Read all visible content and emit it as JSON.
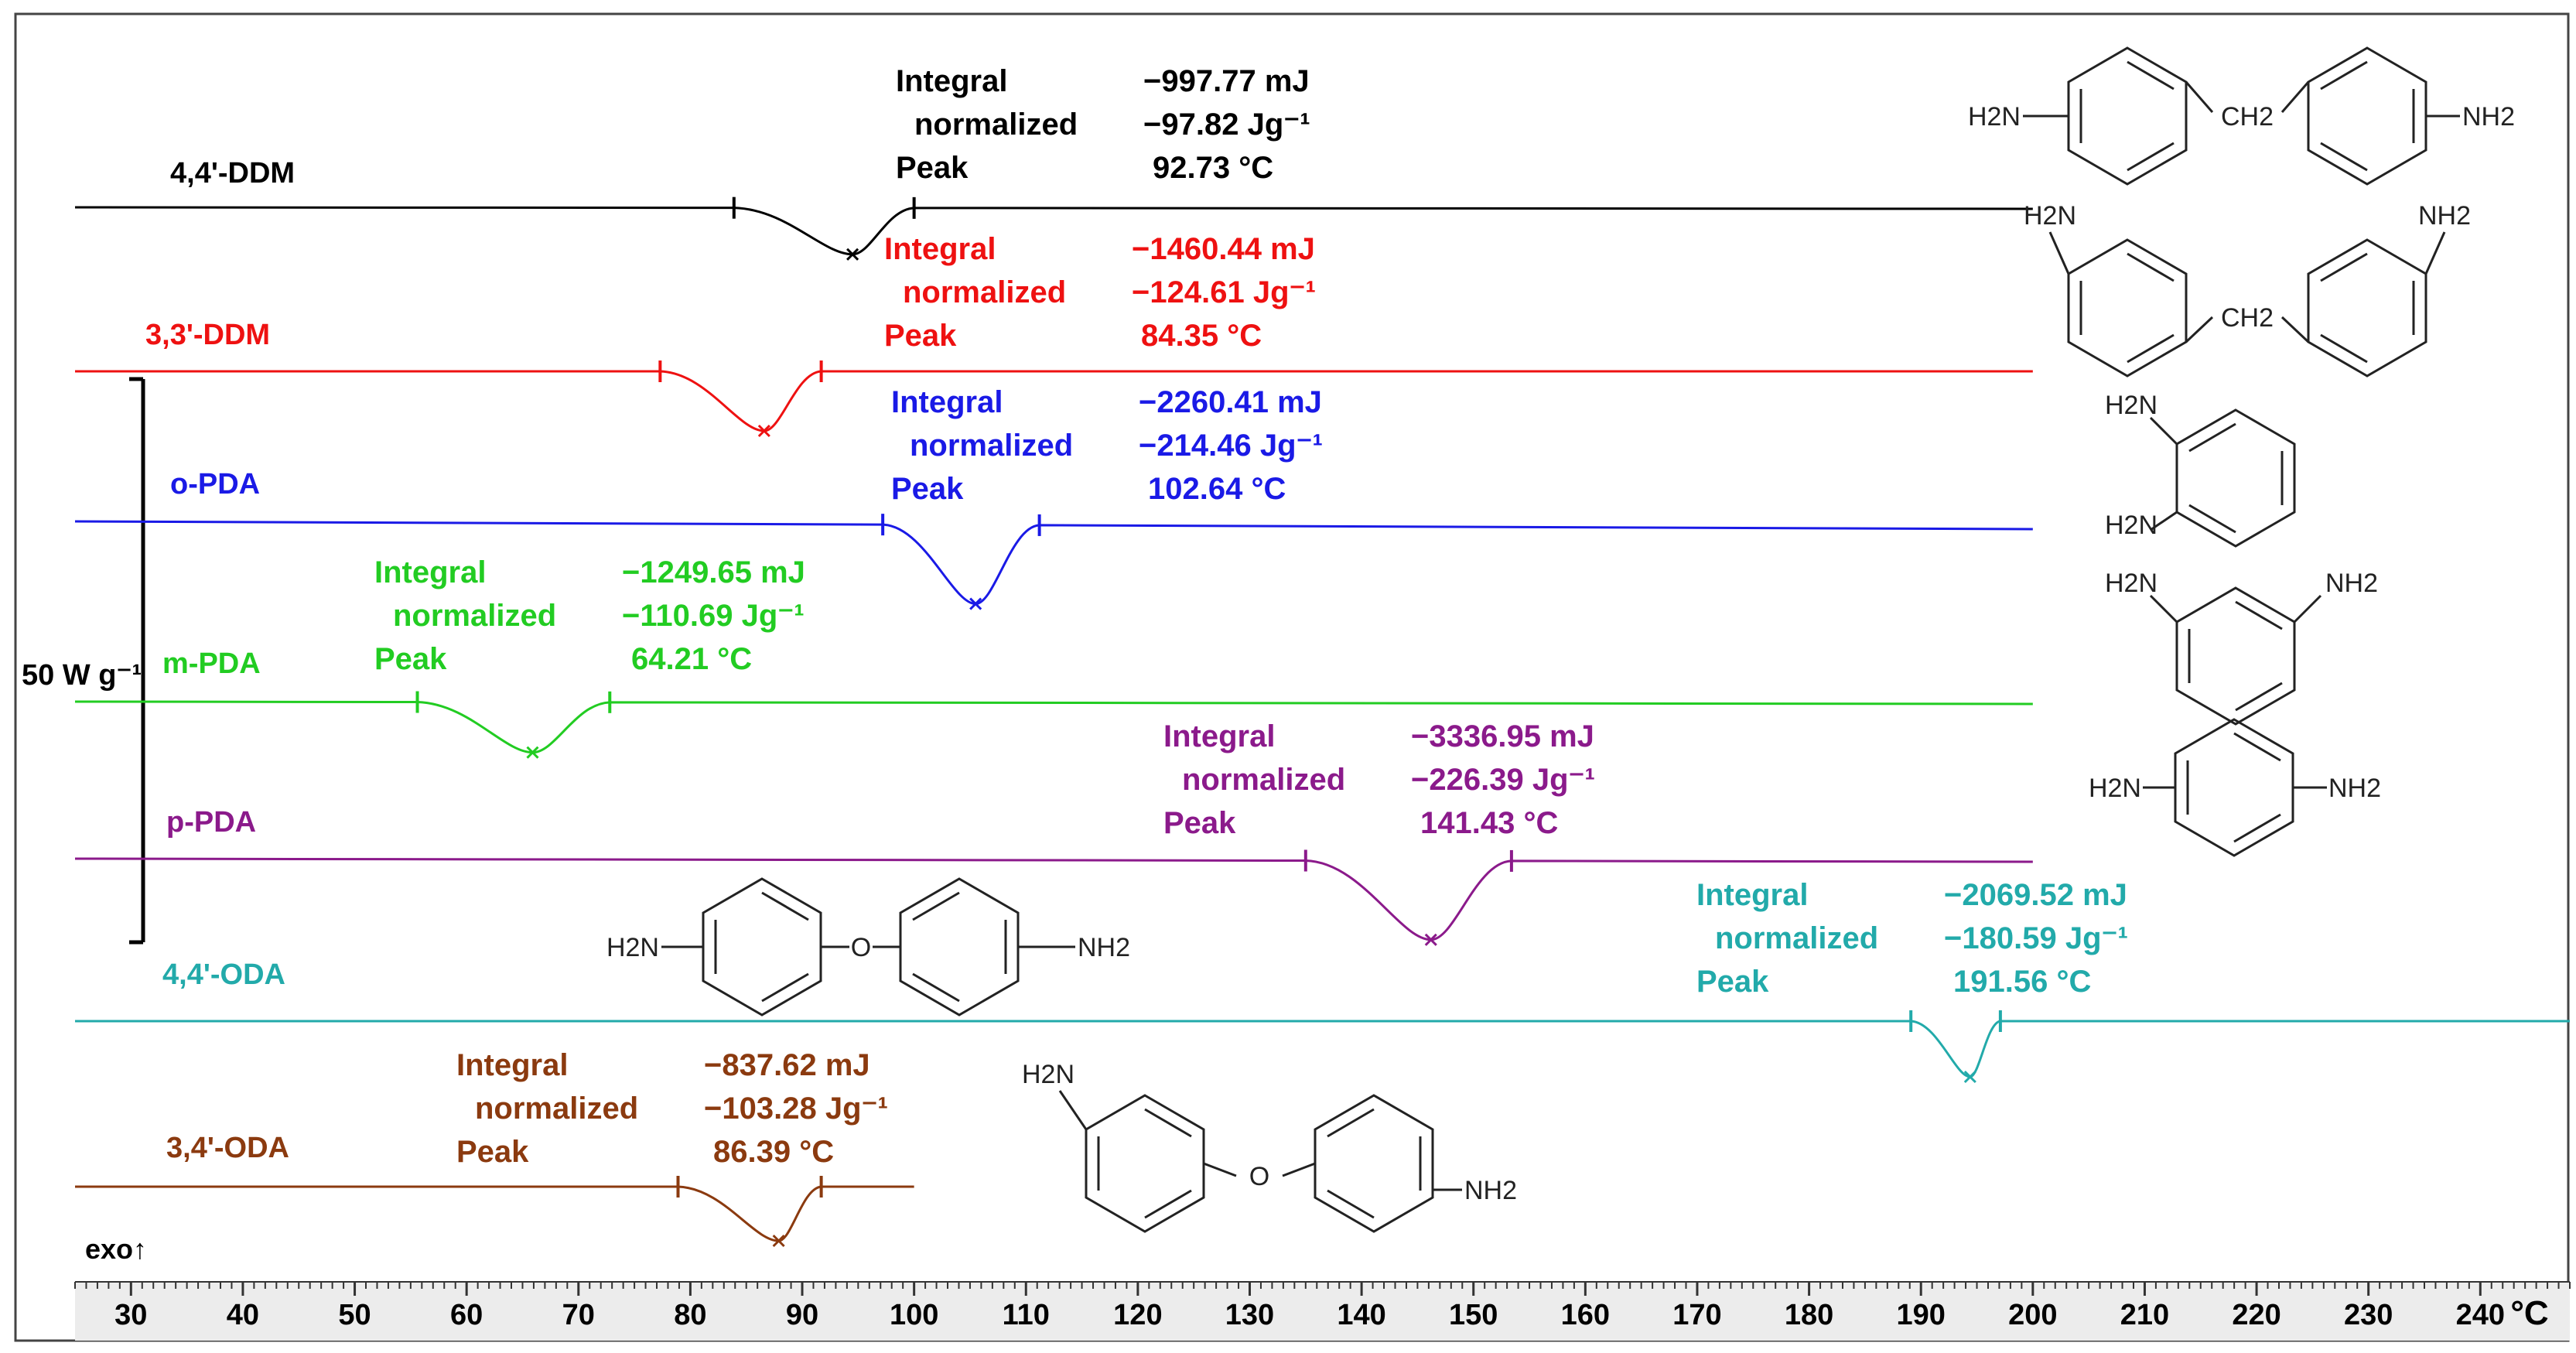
{
  "chart_data": {
    "type": "line",
    "title": "",
    "xlabel": "°C",
    "ylabel": "",
    "xlim": [
      25,
      248
    ],
    "x_ticks": [
      30,
      40,
      50,
      60,
      70,
      80,
      90,
      100,
      110,
      120,
      130,
      140,
      150,
      160,
      170,
      180,
      190,
      200,
      210,
      220,
      230,
      240
    ],
    "scale_bar_label": "50 W g⁻¹",
    "exo_label": "exo↑",
    "labels": {
      "integral": "Integral",
      "normalized": "normalized",
      "peak": "Peak"
    },
    "series": [
      {
        "name": "4,4'-DDM",
        "color": "#000000",
        "integral": "−997.77 mJ",
        "normalized": "−97.82 Jg⁻¹",
        "peak": "92.73 °C",
        "x_start": 25,
        "x_end": 200,
        "onset": 83.9,
        "endset": 100.0,
        "peak_x": 94.5,
        "depth": 60,
        "slope": 2
      },
      {
        "name": "3,3'-DDM",
        "color": "#ee1111",
        "integral": "−1460.44 mJ",
        "normalized": "−124.61 Jg⁻¹",
        "peak": "84.35 °C",
        "x_start": 25,
        "x_end": 200,
        "onset": 77.3,
        "endset": 91.7,
        "peak_x": 86.6,
        "depth": 77,
        "slope": 0
      },
      {
        "name": "o-PDA",
        "color": "#1a1ae6",
        "integral": "−2260.41 mJ",
        "normalized": "−214.46 Jg⁻¹",
        "peak": "102.64 °C",
        "x_start": 25,
        "x_end": 200,
        "onset": 97.2,
        "endset": 111.2,
        "peak_x": 105.5,
        "depth": 102,
        "slope": 10
      },
      {
        "name": "m-PDA",
        "color": "#22cc22",
        "integral": "−1249.65 mJ",
        "normalized": "−110.69 Jg⁻¹",
        "peak": "64.21 °C",
        "x_start": 25,
        "x_end": 200,
        "onset": 55.6,
        "endset": 72.8,
        "peak_x": 65.9,
        "depth": 65,
        "slope": 3
      },
      {
        "name": "p-PDA",
        "color": "#8b1a8b",
        "integral": "−3336.95 mJ",
        "normalized": "−226.39 Jg⁻¹",
        "peak": "141.43 °C",
        "x_start": 25,
        "x_end": 200,
        "onset": 135.0,
        "endset": 153.4,
        "peak_x": 146.2,
        "depth": 102,
        "slope": 4
      },
      {
        "name": "4,4'-ODA",
        "color": "#22aaaa",
        "integral": "−2069.52 mJ",
        "normalized": "−180.59 Jg⁻¹",
        "peak": "191.56 °C",
        "x_start": 25,
        "x_end": 248,
        "onset": 189.1,
        "endset": 197.1,
        "peak_x": 194.4,
        "depth": 72,
        "slope": 0
      },
      {
        "name": "3,4'-ODA",
        "color": "#8b3a0f",
        "integral": "−837.62 mJ",
        "normalized": "−103.28 Jg⁻¹",
        "peak": "86.39 °C",
        "x_start": 25,
        "x_end": 100,
        "onset": 78.9,
        "endset": 91.7,
        "peak_x": 87.9,
        "depth": 70,
        "slope": 0
      }
    ]
  },
  "structure_labels": {
    "nh2": "NH2",
    "h2n": "H2N",
    "ch2": "CH2",
    "o": "O"
  }
}
